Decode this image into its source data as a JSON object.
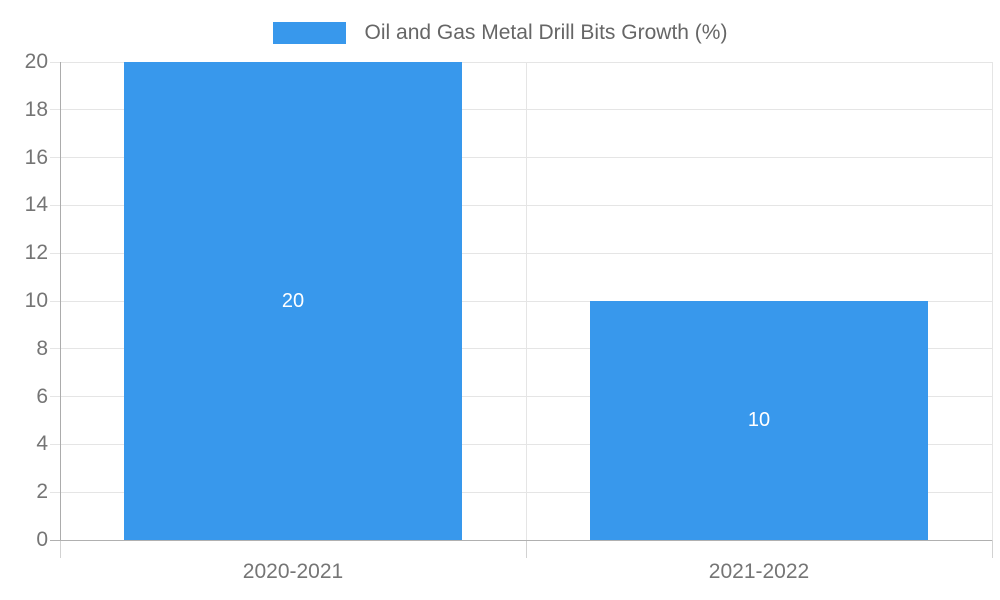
{
  "chart_data": {
    "type": "bar",
    "title": "Oil and Gas Metal Drill Bits Growth (%)",
    "categories": [
      "2020-2021",
      "2021-2022"
    ],
    "values": [
      20,
      10
    ],
    "value_labels": [
      "20",
      "10"
    ],
    "series": [
      {
        "name": "Oil and Gas Metal Drill Bits Growth (%)",
        "values": [
          20,
          10
        ]
      }
    ],
    "xlabel": "",
    "ylabel": "",
    "ylim": [
      0,
      20
    ],
    "yticks": [
      0,
      2,
      4,
      6,
      8,
      10,
      12,
      14,
      16,
      18,
      20
    ],
    "grid": true,
    "legend_position": "top"
  },
  "legend": {
    "label": "Oil and Gas Metal Drill Bits Growth (%)"
  },
  "colors": {
    "bar": "#3898EC",
    "grid": "#E5E5E5",
    "axis": "#ACACAC",
    "baseline": "#B0B0B0",
    "subtick": "#D2D2D2",
    "tick_text": "#757575",
    "legend_text": "#666666",
    "value_text": "#FFFFFF"
  }
}
